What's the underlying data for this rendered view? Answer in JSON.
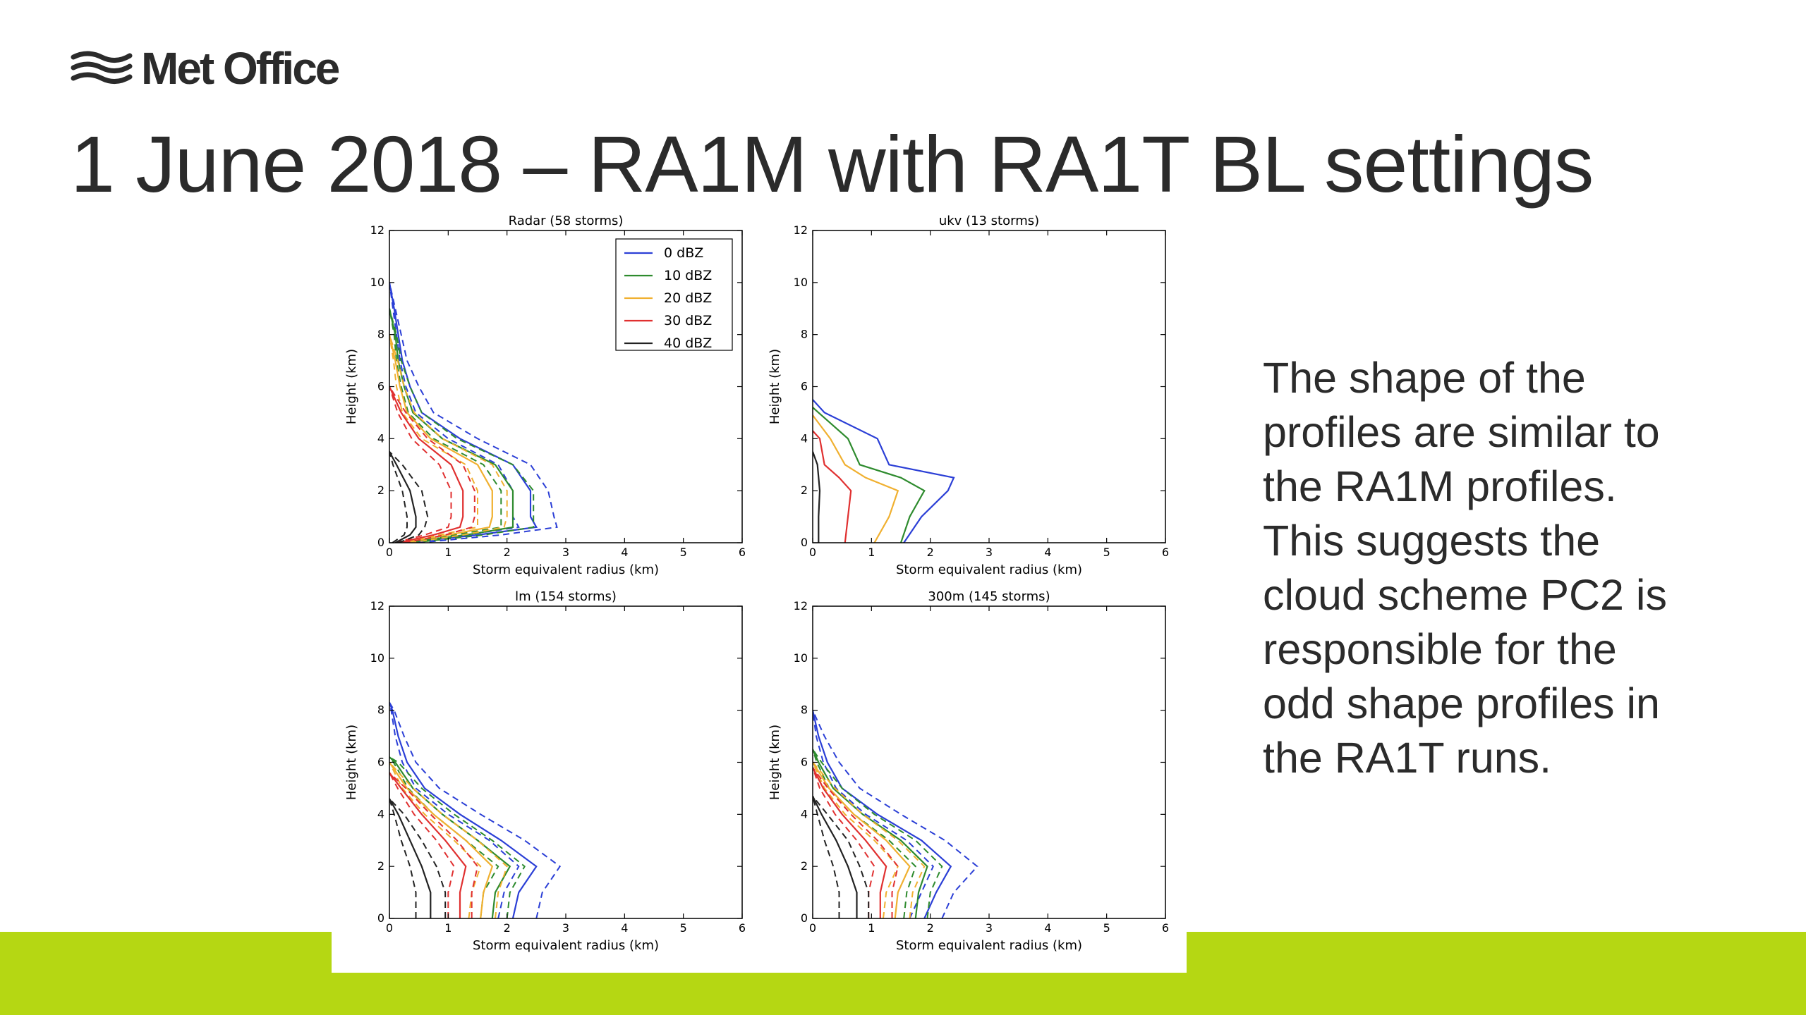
{
  "branding": {
    "logo_text": "Met Office"
  },
  "slide": {
    "title": "1 June 2018 – RA1M with RA1T BL settings",
    "body_lines": [
      "The shape of the",
      "profiles are similar to",
      "the RA1M profiles.",
      "This suggests the",
      "cloud scheme PC2 is",
      "responsible for the",
      "odd shape profiles in",
      "the RA1T runs."
    ]
  },
  "colors": {
    "accent_band": "#b5d713",
    "series": [
      "#2b3fd6",
      "#2e8b2e",
      "#f0b030",
      "#e03030",
      "#222222"
    ]
  },
  "chart_data": [
    {
      "type": "line",
      "title": "Radar (58 storms)",
      "xlabel": "Storm equivalent radius (km)",
      "ylabel": "Height (km)",
      "xlim": [
        0,
        6
      ],
      "ylim": [
        0,
        12
      ],
      "xticks": [
        "0",
        "1",
        "2",
        "3",
        "4",
        "5",
        "6"
      ],
      "yticks": [
        "0",
        "2",
        "4",
        "6",
        "8",
        "10",
        "12"
      ],
      "legend": {
        "placement": "top-right",
        "entries": [
          "0 dBZ",
          "10 dBZ",
          "20 dBZ",
          "30 dBZ",
          "40 dBZ"
        ]
      },
      "series": [
        {
          "name": "0 dBZ",
          "y": [
            0,
            0.3,
            0.6,
            1,
            2,
            3,
            4,
            5,
            6,
            7,
            8,
            9,
            10
          ],
          "median": [
            0.3,
            1.5,
            2.5,
            2.4,
            2.4,
            2.1,
            1.2,
            0.55,
            0.35,
            0.22,
            0.15,
            0.08,
            0
          ],
          "q25": [
            0.2,
            1.3,
            2.2,
            2.1,
            2.1,
            1.85,
            1,
            0.45,
            0.28,
            0.18,
            0.12,
            0.06,
            0
          ],
          "q75": [
            0.5,
            1.9,
            2.85,
            2.8,
            2.7,
            2.4,
            1.5,
            0.75,
            0.5,
            0.3,
            0.2,
            0.1,
            0
          ]
        },
        {
          "name": "10 dBZ",
          "y": [
            0,
            0.3,
            0.6,
            1,
            2,
            3,
            4,
            5,
            6,
            7,
            8,
            9
          ],
          "median": [
            0.25,
            1.3,
            2.1,
            2.1,
            2.1,
            1.8,
            0.9,
            0.4,
            0.25,
            0.15,
            0.1,
            0
          ],
          "q25": [
            0.15,
            1.1,
            1.9,
            1.9,
            1.9,
            1.6,
            0.75,
            0.32,
            0.2,
            0.12,
            0.08,
            0
          ],
          "q75": [
            0.4,
            1.6,
            2.45,
            2.45,
            2.45,
            2.1,
            1.15,
            0.55,
            0.35,
            0.2,
            0.12,
            0
          ]
        },
        {
          "name": "20 dBZ",
          "y": [
            0,
            0.3,
            0.6,
            1,
            2,
            3,
            4,
            5,
            6,
            7,
            8
          ],
          "median": [
            0.2,
            1,
            1.7,
            1.75,
            1.75,
            1.5,
            0.7,
            0.3,
            0.18,
            0.1,
            0
          ],
          "q25": [
            0.12,
            0.85,
            1.5,
            1.5,
            1.5,
            1.3,
            0.55,
            0.22,
            0.12,
            0.07,
            0
          ],
          "q75": [
            0.35,
            1.25,
            1.95,
            2,
            2,
            1.75,
            0.9,
            0.42,
            0.25,
            0.14,
            0
          ]
        },
        {
          "name": "30 dBZ",
          "y": [
            0,
            0.3,
            0.6,
            1,
            2,
            3,
            4,
            5,
            6
          ],
          "median": [
            0.15,
            0.75,
            1.2,
            1.25,
            1.25,
            1.05,
            0.5,
            0.2,
            0
          ],
          "q25": [
            0.1,
            0.6,
            1,
            1.05,
            1.05,
            0.85,
            0.38,
            0.14,
            0
          ],
          "q75": [
            0.25,
            0.95,
            1.4,
            1.45,
            1.45,
            1.25,
            0.65,
            0.28,
            0
          ]
        },
        {
          "name": "40 dBZ",
          "y": [
            0,
            0.3,
            0.6,
            1,
            2,
            3,
            3.5
          ],
          "median": [
            0.1,
            0.35,
            0.45,
            0.45,
            0.35,
            0.12,
            0
          ],
          "q25": [
            0.05,
            0.25,
            0.3,
            0.3,
            0.22,
            0.06,
            0
          ],
          "q75": [
            0.15,
            0.5,
            0.6,
            0.65,
            0.55,
            0.22,
            0
          ]
        }
      ]
    },
    {
      "type": "line",
      "title": "ukv (13 storms)",
      "xlabel": "Storm equivalent radius (km)",
      "ylabel": "Height (km)",
      "xlim": [
        0,
        6
      ],
      "ylim": [
        0,
        12
      ],
      "xticks": [
        "0",
        "1",
        "2",
        "3",
        "4",
        "5",
        "6"
      ],
      "yticks": [
        "0",
        "2",
        "4",
        "6",
        "8",
        "10",
        "12"
      ],
      "series": [
        {
          "name": "0 dBZ",
          "y": [
            0,
            1,
            2,
            2.5,
            3,
            4,
            5,
            5.5
          ],
          "median": [
            1.55,
            1.85,
            2.3,
            2.4,
            1.3,
            1.1,
            0.2,
            0
          ],
          "q25": [],
          "q75": []
        },
        {
          "name": "10 dBZ",
          "y": [
            0,
            1,
            2,
            2.5,
            3,
            4,
            5,
            5.2
          ],
          "median": [
            1.5,
            1.65,
            1.9,
            1.5,
            0.8,
            0.6,
            0.1,
            0
          ],
          "q25": [],
          "q75": []
        },
        {
          "name": "20 dBZ",
          "y": [
            0,
            1,
            2,
            2.5,
            3,
            4,
            4.9
          ],
          "median": [
            1.05,
            1.3,
            1.45,
            0.9,
            0.55,
            0.3,
            0
          ],
          "q25": [],
          "q75": []
        },
        {
          "name": "30 dBZ",
          "y": [
            0,
            1,
            2,
            2.5,
            3,
            4,
            4.3
          ],
          "median": [
            0.55,
            0.6,
            0.65,
            0.45,
            0.2,
            0.12,
            0
          ],
          "q25": [],
          "q75": []
        },
        {
          "name": "40 dBZ",
          "y": [
            0,
            1,
            2,
            3,
            3.5
          ],
          "median": [
            0.1,
            0.1,
            0.12,
            0.08,
            0
          ],
          "q25": [],
          "q75": []
        }
      ]
    },
    {
      "type": "line",
      "title": "lm (154 storms)",
      "xlabel": "Storm equivalent radius (km)",
      "ylabel": "Height (km)",
      "xlim": [
        0,
        6
      ],
      "ylim": [
        0,
        12
      ],
      "xticks": [
        "0",
        "1",
        "2",
        "3",
        "4",
        "5",
        "6"
      ],
      "yticks": [
        "0",
        "2",
        "4",
        "6",
        "8",
        "10",
        "12"
      ],
      "series": [
        {
          "name": "0 dBZ",
          "y": [
            0,
            1,
            2,
            3,
            4,
            5,
            6,
            7,
            8,
            8.3
          ],
          "median": [
            2.1,
            2.2,
            2.5,
            1.9,
            1.2,
            0.6,
            0.3,
            0.15,
            0.05,
            0
          ],
          "q25": [
            1.85,
            1.95,
            2.2,
            1.7,
            1,
            0.45,
            0.22,
            0.1,
            0.03,
            0
          ],
          "q75": [
            2.5,
            2.6,
            2.9,
            2.3,
            1.55,
            0.85,
            0.45,
            0.25,
            0.08,
            0
          ]
        },
        {
          "name": "10 dBZ",
          "y": [
            0,
            1,
            2,
            3,
            4,
            5,
            6,
            6.2
          ],
          "median": [
            1.75,
            1.8,
            2.05,
            1.5,
            0.9,
            0.4,
            0.1,
            0
          ],
          "q25": [
            1.55,
            1.6,
            1.85,
            1.3,
            0.75,
            0.32,
            0.07,
            0
          ],
          "q75": [
            2,
            2.05,
            2.3,
            1.75,
            1.1,
            0.55,
            0.15,
            0
          ]
        },
        {
          "name": "20 dBZ",
          "y": [
            0,
            1,
            2,
            3,
            4,
            5,
            6
          ],
          "median": [
            1.55,
            1.6,
            1.75,
            1.3,
            0.75,
            0.3,
            0
          ],
          "q25": [
            1.35,
            1.4,
            1.55,
            1.1,
            0.6,
            0.22,
            0
          ],
          "q75": [
            1.8,
            1.85,
            2,
            1.5,
            0.9,
            0.4,
            0
          ]
        },
        {
          "name": "30 dBZ",
          "y": [
            0,
            1,
            2,
            3,
            4,
            5,
            5.6
          ],
          "median": [
            1.2,
            1.2,
            1.3,
            0.95,
            0.55,
            0.2,
            0
          ],
          "q25": [
            1,
            1,
            1.1,
            0.8,
            0.42,
            0.14,
            0
          ],
          "q75": [
            1.4,
            1.4,
            1.5,
            1.15,
            0.7,
            0.28,
            0
          ]
        },
        {
          "name": "40 dBZ",
          "y": [
            0,
            1,
            2,
            3,
            4,
            4.6
          ],
          "median": [
            0.7,
            0.7,
            0.55,
            0.35,
            0.15,
            0
          ],
          "q25": [
            0.45,
            0.45,
            0.35,
            0.2,
            0.08,
            0
          ],
          "q75": [
            0.95,
            0.95,
            0.8,
            0.55,
            0.25,
            0
          ]
        }
      ]
    },
    {
      "type": "line",
      "title": "300m (145 storms)",
      "xlabel": "Storm equivalent radius (km)",
      "ylabel": "Height (km)",
      "xlim": [
        0,
        6
      ],
      "ylim": [
        0,
        12
      ],
      "xticks": [
        "0",
        "1",
        "2",
        "3",
        "4",
        "5",
        "6"
      ],
      "yticks": [
        "0",
        "2",
        "4",
        "6",
        "8",
        "10",
        "12"
      ],
      "series": [
        {
          "name": "0 dBZ",
          "y": [
            0,
            1,
            2,
            3,
            4,
            5,
            6,
            7,
            8
          ],
          "median": [
            1.9,
            2.1,
            2.35,
            1.85,
            1.1,
            0.5,
            0.25,
            0.1,
            0
          ],
          "q25": [
            1.65,
            1.85,
            2.05,
            1.6,
            0.9,
            0.4,
            0.18,
            0.06,
            0
          ],
          "q75": [
            2.2,
            2.4,
            2.8,
            2.25,
            1.5,
            0.8,
            0.45,
            0.2,
            0
          ]
        },
        {
          "name": "10 dBZ",
          "y": [
            0,
            1,
            2,
            3,
            4,
            5,
            6,
            6.5
          ],
          "median": [
            1.75,
            1.8,
            1.95,
            1.5,
            0.85,
            0.35,
            0.1,
            0
          ],
          "q25": [
            1.55,
            1.6,
            1.75,
            1.3,
            0.7,
            0.28,
            0.07,
            0
          ],
          "q75": [
            1.95,
            2,
            2.2,
            1.75,
            1.05,
            0.5,
            0.15,
            0
          ]
        },
        {
          "name": "20 dBZ",
          "y": [
            0,
            1,
            2,
            3,
            4,
            5,
            6
          ],
          "median": [
            1.4,
            1.45,
            1.65,
            1.25,
            0.7,
            0.28,
            0
          ],
          "q25": [
            1.2,
            1.25,
            1.45,
            1.05,
            0.55,
            0.2,
            0
          ],
          "q75": [
            1.65,
            1.7,
            1.9,
            1.45,
            0.85,
            0.38,
            0
          ]
        },
        {
          "name": "30 dBZ",
          "y": [
            0,
            1,
            2,
            3,
            4,
            5,
            5.8
          ],
          "median": [
            1.15,
            1.15,
            1.25,
            0.9,
            0.5,
            0.18,
            0
          ],
          "q25": [
            0.95,
            0.95,
            1.05,
            0.75,
            0.38,
            0.12,
            0
          ],
          "q75": [
            1.35,
            1.35,
            1.45,
            1.1,
            0.65,
            0.26,
            0
          ]
        },
        {
          "name": "40 dBZ",
          "y": [
            0,
            1,
            2,
            3,
            4,
            4.7
          ],
          "median": [
            0.75,
            0.75,
            0.6,
            0.4,
            0.15,
            0
          ],
          "q25": [
            0.45,
            0.45,
            0.35,
            0.2,
            0.08,
            0
          ],
          "q75": [
            0.95,
            0.95,
            0.8,
            0.6,
            0.25,
            0
          ]
        }
      ]
    }
  ]
}
